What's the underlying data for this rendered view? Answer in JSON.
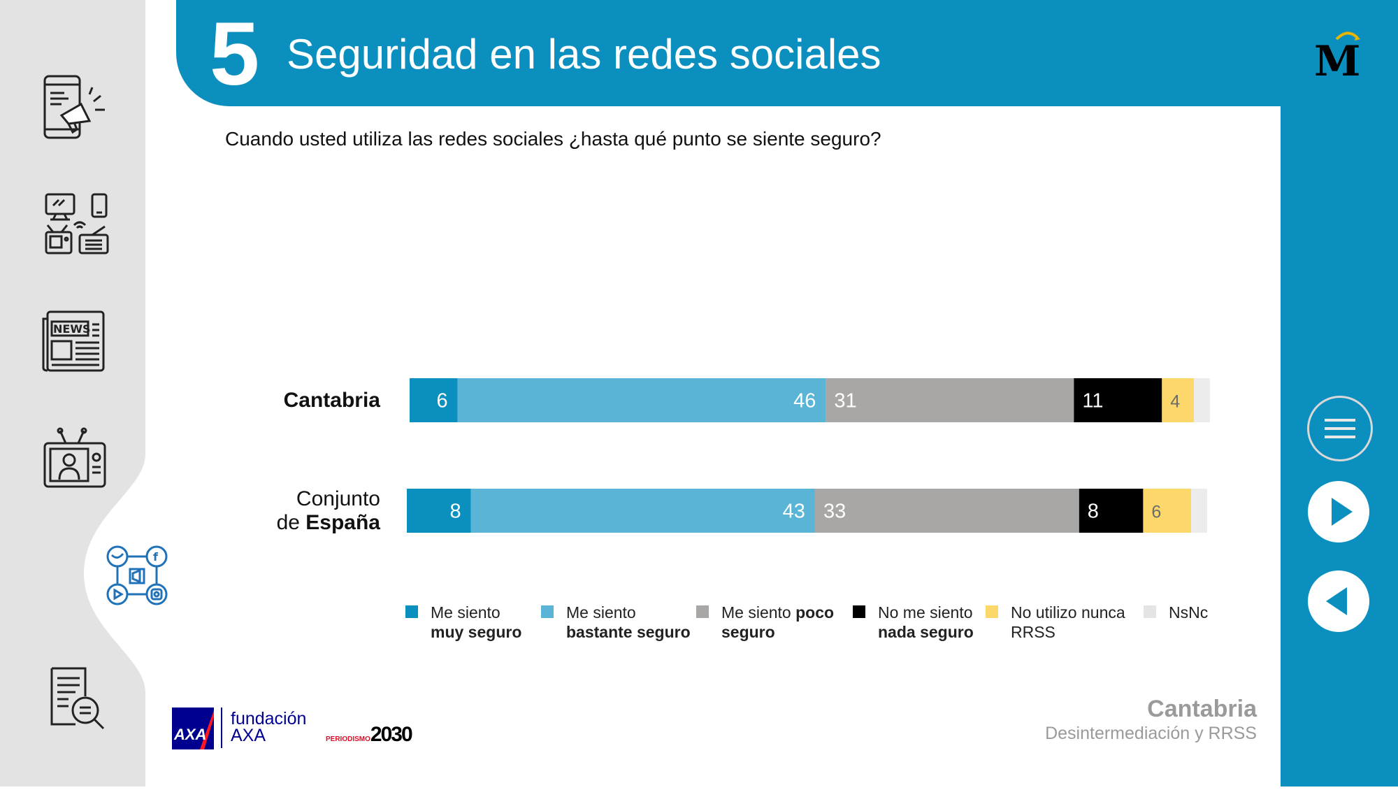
{
  "header": {
    "number": "5",
    "title": "Seguridad en las redes sociales"
  },
  "question": "Cuando usted utiliza las redes sociales ¿hasta qué punto se siente seguro?",
  "rows": [
    {
      "label_regular": "",
      "label_bold": "Cantabria"
    },
    {
      "label_regular_line1": "Conjunto",
      "label_regular_line2": "de ",
      "label_bold": "España"
    }
  ],
  "legend": [
    {
      "line1": "Me siento",
      "line2_bold": "muy seguro",
      "color": "#0b8fbf"
    },
    {
      "line1": "Me siento",
      "line2_bold": "bastante seguro",
      "color": "#5ab4d6"
    },
    {
      "line1": "Me siento ",
      "line1_bold": "poco",
      "line2_bold": "seguro",
      "color": "#a8a7a5"
    },
    {
      "line1": "No me siento",
      "line2_bold": "nada seguro",
      "color": "#000000"
    },
    {
      "line1": "No utilizo nunca",
      "line2": "RRSS",
      "color": "#fcd86a"
    },
    {
      "line1": "NsNc",
      "color": "#ececec"
    }
  ],
  "footer": {
    "region": "Cantabria",
    "subtitle": "Desintermediación y RRSS",
    "brand_axa": "AXA",
    "brand_fundacion_1": "fundación",
    "brand_fundacion_2": "AXA",
    "brand_periodismo": "PERIODISMO",
    "brand_2030": "2030"
  },
  "icons": [
    "mobile-megaphone-icon",
    "devices-icon",
    "newspaper-icon",
    "tv-presenter-icon",
    "social-media-icon",
    "document-search-icon",
    "menu-icon",
    "play-icon",
    "back-icon"
  ],
  "chart_data": {
    "type": "bar",
    "orientation": "horizontal",
    "stacked": true,
    "categories": [
      "Cantabria",
      "Conjunto de España"
    ],
    "series": [
      {
        "name": "Me siento muy seguro",
        "values": [
          6,
          8
        ],
        "color": "#0b8fbf"
      },
      {
        "name": "Me siento bastante seguro",
        "values": [
          46,
          43
        ],
        "color": "#5ab4d6"
      },
      {
        "name": "Me siento poco seguro",
        "values": [
          31,
          33
        ],
        "color": "#a8a7a5"
      },
      {
        "name": "No me siento nada seguro",
        "values": [
          11,
          8
        ],
        "color": "#000000"
      },
      {
        "name": "No utilizo nunca RRSS",
        "values": [
          4,
          6
        ],
        "color": "#fcd86a"
      },
      {
        "name": "NsNc",
        "values": [
          2,
          2
        ],
        "color": "#ececec"
      }
    ],
    "data_label_colors": [
      "#ffffff",
      "#ffffff",
      "#ffffff",
      "#ffffff",
      "#6b6b6b",
      ""
    ],
    "show_nsnc_label": false,
    "legend_position": "bottom"
  }
}
